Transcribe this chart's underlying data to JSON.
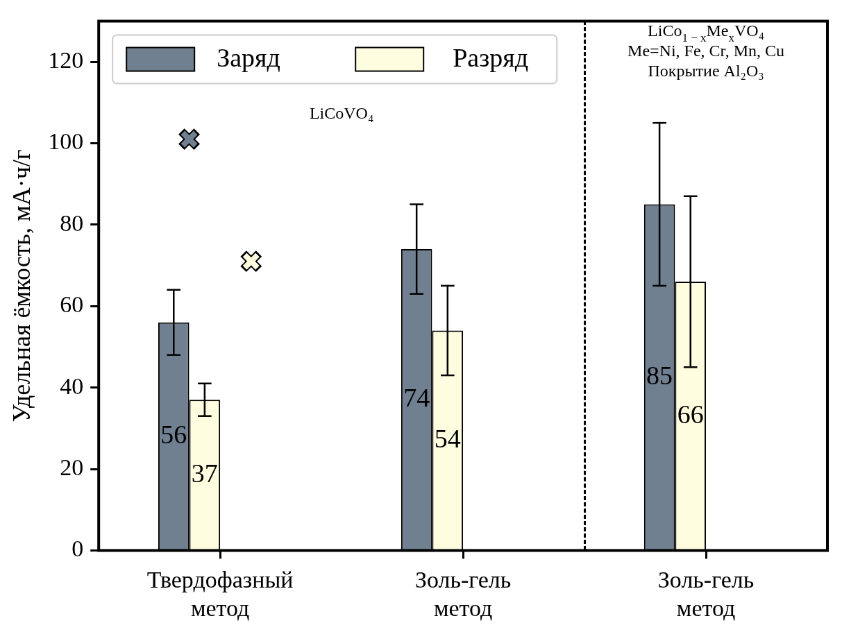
{
  "chart_data": {
    "type": "bar",
    "categories": [
      "Твердофазный метод",
      "Золь-гель метод",
      "Золь-гель метод"
    ],
    "ylabel": "Удельная ёмкость, мА·ч/г",
    "ylim": [
      0,
      130
    ],
    "yticks": [
      0,
      20,
      40,
      60,
      80,
      100,
      120
    ],
    "legend": "top left",
    "grid": false,
    "series": [
      {
        "name": "Заряд",
        "color": "#708090",
        "values": [
          56,
          74,
          85
        ],
        "value_labels": [
          "56",
          "74",
          "85"
        ],
        "errors": [
          8,
          11,
          20
        ]
      },
      {
        "name": "Разряд",
        "color": "#fffde0",
        "values": [
          37,
          54,
          66
        ],
        "value_labels": [
          "37",
          "54",
          "66"
        ],
        "errors": [
          4,
          11,
          21
        ]
      },
      {
        "type": "scatter",
        "color": "#708090",
        "marker": "cross",
        "x": [
          "Твердофазный метод"
        ],
        "values": [
          101
        ]
      },
      {
        "type": "scatter",
        "color": "#fffde0",
        "marker": "cross",
        "x": [
          "Твердофазный метод"
        ],
        "values": [
          71
        ]
      }
    ],
    "annotations": [
      "LiCoVO₄",
      "LiCo$_{1 − x}$Me$_{x}$VO₄",
      "Me=Ni, Fe, Cr, Mn, Cu",
      "Покрытие Al₂O₃"
    ]
  }
}
